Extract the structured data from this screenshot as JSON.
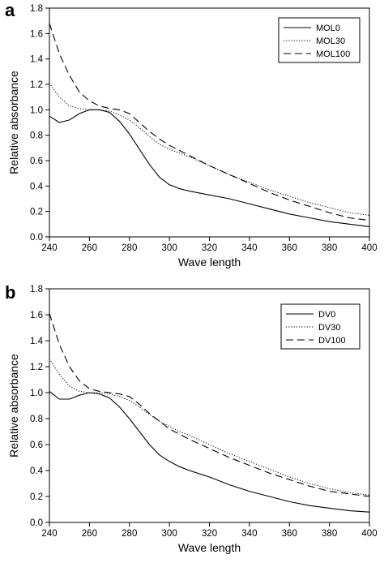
{
  "chart_data": [
    {
      "panel": "a",
      "type": "line",
      "xlabel": "Wave length",
      "ylabel": "Relative absorbance",
      "xlim": [
        240,
        400
      ],
      "ylim": [
        0.0,
        1.8
      ],
      "xticks": [
        "240",
        "260",
        "280",
        "300",
        "320",
        "340",
        "360",
        "380",
        "400"
      ],
      "yticks": [
        "0.0",
        "0.2",
        "0.4",
        "0.6",
        "0.8",
        "1.0",
        "1.2",
        "1.4",
        "1.6",
        "1.8"
      ],
      "grid": false,
      "legend_position": "top-right",
      "x": [
        240,
        245,
        250,
        255,
        260,
        265,
        270,
        275,
        280,
        285,
        290,
        295,
        300,
        305,
        310,
        320,
        330,
        340,
        350,
        360,
        370,
        380,
        390,
        400
      ],
      "series": [
        {
          "name": "MOL0",
          "style": "solid",
          "values": [
            0.95,
            0.9,
            0.92,
            0.97,
            1.0,
            1.0,
            0.98,
            0.91,
            0.81,
            0.69,
            0.57,
            0.47,
            0.41,
            0.38,
            0.36,
            0.33,
            0.3,
            0.26,
            0.22,
            0.18,
            0.15,
            0.12,
            0.1,
            0.08
          ]
        },
        {
          "name": "MOL30",
          "style": "dotted",
          "values": [
            1.21,
            1.1,
            1.03,
            1.01,
            1.0,
            1.0,
            0.99,
            0.96,
            0.92,
            0.86,
            0.79,
            0.73,
            0.69,
            0.66,
            0.63,
            0.56,
            0.49,
            0.43,
            0.37,
            0.32,
            0.27,
            0.23,
            0.19,
            0.17
          ]
        },
        {
          "name": "MOL100",
          "style": "dashed",
          "values": [
            1.68,
            1.44,
            1.27,
            1.14,
            1.07,
            1.03,
            1.01,
            1.0,
            0.97,
            0.9,
            0.83,
            0.77,
            0.72,
            0.68,
            0.64,
            0.56,
            0.49,
            0.42,
            0.35,
            0.29,
            0.24,
            0.19,
            0.15,
            0.13
          ]
        }
      ]
    },
    {
      "panel": "b",
      "type": "line",
      "xlabel": "Wave length",
      "ylabel": "Relative absorbance",
      "xlim": [
        240,
        400
      ],
      "ylim": [
        0.0,
        1.8
      ],
      "xticks": [
        "240",
        "260",
        "280",
        "300",
        "320",
        "340",
        "360",
        "380",
        "400"
      ],
      "yticks": [
        "0.0",
        "0.2",
        "0.4",
        "0.6",
        "0.8",
        "1.0",
        "1.2",
        "1.4",
        "1.6",
        "1.8"
      ],
      "grid": false,
      "legend_position": "top-right",
      "x": [
        240,
        245,
        250,
        255,
        260,
        265,
        270,
        275,
        280,
        285,
        290,
        295,
        300,
        305,
        310,
        320,
        330,
        340,
        350,
        360,
        370,
        380,
        390,
        400
      ],
      "series": [
        {
          "name": "DV0",
          "style": "solid",
          "values": [
            1.01,
            0.95,
            0.95,
            0.98,
            1.0,
            0.99,
            0.96,
            0.89,
            0.8,
            0.7,
            0.6,
            0.52,
            0.47,
            0.43,
            0.4,
            0.35,
            0.29,
            0.24,
            0.2,
            0.16,
            0.13,
            0.11,
            0.09,
            0.08
          ]
        },
        {
          "name": "DV30",
          "style": "dotted",
          "values": [
            1.26,
            1.14,
            1.05,
            1.01,
            1.0,
            1.0,
            0.99,
            0.97,
            0.94,
            0.89,
            0.83,
            0.78,
            0.74,
            0.7,
            0.67,
            0.6,
            0.53,
            0.47,
            0.41,
            0.35,
            0.3,
            0.26,
            0.23,
            0.21
          ]
        },
        {
          "name": "DV100",
          "style": "dashed",
          "values": [
            1.61,
            1.37,
            1.2,
            1.09,
            1.03,
            1.01,
            1.0,
            0.99,
            0.97,
            0.91,
            0.84,
            0.78,
            0.72,
            0.68,
            0.64,
            0.57,
            0.5,
            0.44,
            0.38,
            0.33,
            0.28,
            0.24,
            0.22,
            0.2
          ]
        }
      ]
    }
  ]
}
